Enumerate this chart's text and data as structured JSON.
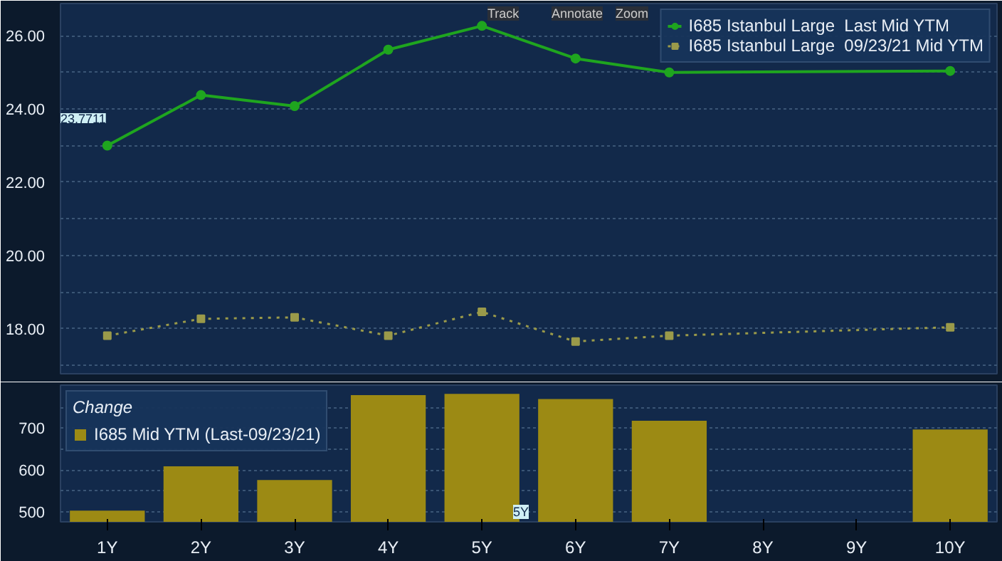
{
  "chart_data": [
    {
      "type": "line",
      "categories": [
        null,
        null,
        null,
        null,
        null,
        null,
        null,
        null,
        null,
        null
      ],
      "series": [
        {
          "name": "I685 Istanbul Large  Last Mid YTM",
          "color": "#1fa51f",
          "marker": "circle",
          "line_style": "solid",
          "values": [
            23.0,
            24.38,
            24.08,
            25.62,
            26.27,
            25.38,
            25.0,
            null,
            null,
            25.04
          ]
        },
        {
          "name": "I685 Istanbul Large  09/23/21 Mid YTM",
          "color": "#9a9a4a",
          "marker": "square",
          "line_style": "dotted",
          "values": [
            17.81,
            18.27,
            18.31,
            17.81,
            18.46,
            17.65,
            17.81,
            null,
            null,
            18.04
          ]
        }
      ],
      "ylim": [
        16.77,
        26.88
      ],
      "yticks": [
        {
          "value": 17,
          "label": null
        },
        {
          "value": 18,
          "label": "18.00"
        },
        {
          "value": 19,
          "label": null
        },
        {
          "value": 20,
          "label": "20.00"
        },
        {
          "value": 21,
          "label": null
        },
        {
          "value": 22,
          "label": "22.00"
        },
        {
          "value": 23,
          "label": null
        },
        {
          "value": 24,
          "label": "24.00"
        },
        {
          "value": 25,
          "label": null
        },
        {
          "value": 26,
          "label": "26.00"
        }
      ],
      "grid": "y",
      "legend": "top right",
      "tick_labels": "y",
      "annotations": [
        "23.7711",
        "Track",
        "Annotate",
        "Zoom"
      ]
    },
    {
      "type": "bar",
      "categories": [
        "1Y",
        "2Y",
        "3Y",
        "4Y",
        "5Y",
        "6Y",
        "7Y",
        "8Y",
        "9Y",
        "10Y"
      ],
      "legend_title": "Change",
      "series": [
        {
          "name": "I685 Mid YTM (Last-09/23/21)",
          "color": "#9c8a14",
          "values": [
            503,
            609,
            576,
            779,
            782,
            770,
            718,
            null,
            null,
            697
          ]
        }
      ],
      "ylim": [
        476,
        803
      ],
      "yticks": [
        500,
        {
          "value": 550,
          "label": null
        },
        600,
        {
          "value": 650,
          "label": null
        },
        700,
        {
          "value": 750,
          "label": null
        }
      ],
      "grid": "y",
      "legend": "top left",
      "annotations": [
        "5Y"
      ]
    }
  ]
}
